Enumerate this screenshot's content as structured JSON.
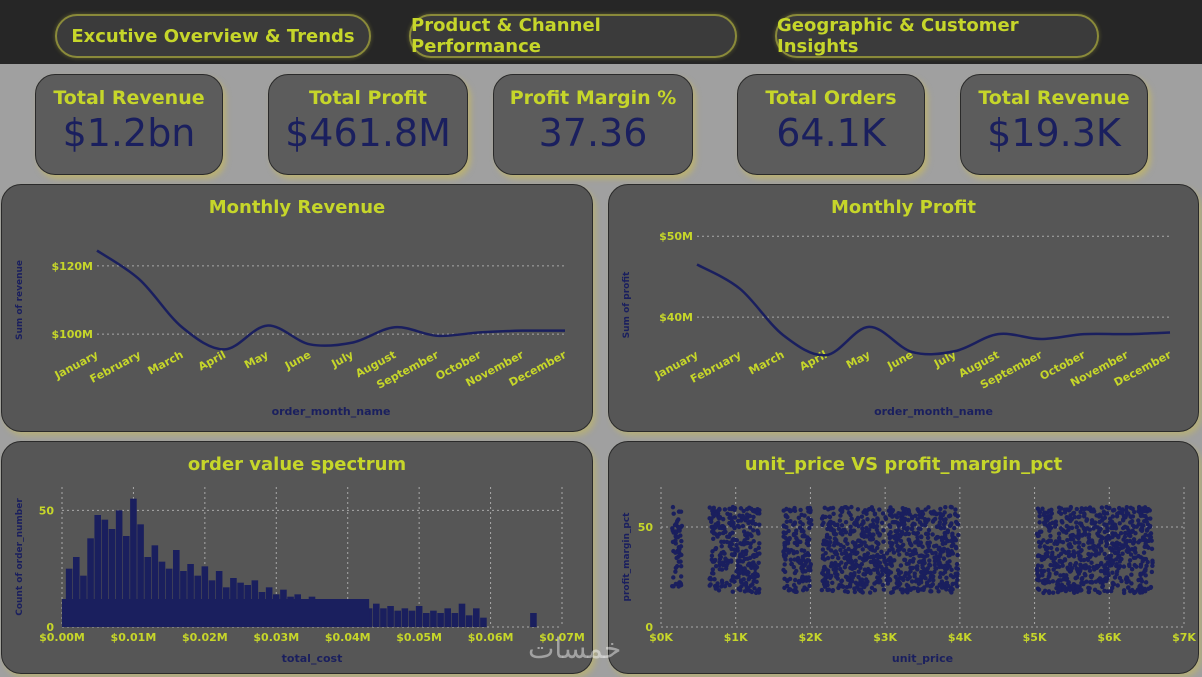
{
  "nav": {
    "tabs": [
      {
        "label": "Excutive Overview & Trends"
      },
      {
        "label": "Product & Channel Performance"
      },
      {
        "label": "Geographic & Customer Insights"
      }
    ]
  },
  "kpis": [
    {
      "label": "Total Revenue",
      "value": "$1.2bn"
    },
    {
      "label": "Total Profit",
      "value": "$461.8M"
    },
    {
      "label": "Profit Margin %",
      "value": "37.36"
    },
    {
      "label": "Total Orders",
      "value": "64.1K"
    },
    {
      "label": "Total Revenue",
      "value": "$19.3K"
    }
  ],
  "colors": {
    "accent": "#c6d62a",
    "series": "#1a1f5e",
    "card_bg": "#565656"
  },
  "watermark": "خمسات",
  "chart_data": [
    {
      "type": "line",
      "title": "Monthly Revenue",
      "xlabel": "order_month_name",
      "ylabel": "Sum of revenue",
      "categories": [
        "January",
        "February",
        "March",
        "April",
        "May",
        "June",
        "July",
        "August",
        "September",
        "October",
        "November",
        "December"
      ],
      "values": [
        124500000,
        116000000,
        102000000,
        95500000,
        102500000,
        97000000,
        97500000,
        102000000,
        99500000,
        100500000,
        101000000,
        101000000
      ],
      "yticks": [
        {
          "v": 100000000,
          "label": "$100M"
        },
        {
          "v": 120000000,
          "label": "$120M"
        }
      ],
      "ylim": [
        88000000,
        132000000
      ],
      "grid": true
    },
    {
      "type": "line",
      "title": "Monthly Profit",
      "xlabel": "order_month_name",
      "ylabel": "Sum of profit",
      "categories": [
        "January",
        "February",
        "March",
        "April",
        "May",
        "June",
        "July",
        "August",
        "September",
        "October",
        "November",
        "December"
      ],
      "values": [
        46500000,
        43500000,
        37800000,
        35300000,
        38800000,
        35700000,
        35800000,
        37900000,
        37300000,
        37900000,
        37900000,
        38100000
      ],
      "yticks": [
        {
          "v": 40000000,
          "label": "$40M"
        },
        {
          "v": 50000000,
          "label": "$50M"
        }
      ],
      "ylim": [
        31000000,
        52000000
      ],
      "grid": true
    },
    {
      "type": "bar",
      "title": "order value spectrum",
      "xlabel": "total_cost",
      "ylabel": "Count of order_number",
      "xticks": [
        "$0.00M",
        "$0.01M",
        "$0.02M",
        "$0.03M",
        "$0.04M",
        "$0.05M",
        "$0.06M",
        "$0.07M"
      ],
      "xlim": [
        0,
        0.07
      ],
      "yticks": [
        0,
        50
      ],
      "ylim": [
        0,
        60
      ],
      "bins": [
        {
          "x": 0.001,
          "count": 25
        },
        {
          "x": 0.002,
          "count": 30
        },
        {
          "x": 0.003,
          "count": 22
        },
        {
          "x": 0.004,
          "count": 38
        },
        {
          "x": 0.005,
          "count": 48
        },
        {
          "x": 0.006,
          "count": 46
        },
        {
          "x": 0.007,
          "count": 42
        },
        {
          "x": 0.008,
          "count": 50
        },
        {
          "x": 0.009,
          "count": 39
        },
        {
          "x": 0.01,
          "count": 55
        },
        {
          "x": 0.011,
          "count": 44
        },
        {
          "x": 0.012,
          "count": 30
        },
        {
          "x": 0.013,
          "count": 35
        },
        {
          "x": 0.014,
          "count": 28
        },
        {
          "x": 0.015,
          "count": 25
        },
        {
          "x": 0.016,
          "count": 33
        },
        {
          "x": 0.017,
          "count": 24
        },
        {
          "x": 0.018,
          "count": 27
        },
        {
          "x": 0.019,
          "count": 22
        },
        {
          "x": 0.02,
          "count": 26
        },
        {
          "x": 0.021,
          "count": 20
        },
        {
          "x": 0.022,
          "count": 24
        },
        {
          "x": 0.023,
          "count": 17
        },
        {
          "x": 0.024,
          "count": 21
        },
        {
          "x": 0.025,
          "count": 19
        },
        {
          "x": 0.026,
          "count": 18
        },
        {
          "x": 0.027,
          "count": 20
        },
        {
          "x": 0.028,
          "count": 15
        },
        {
          "x": 0.029,
          "count": 17
        },
        {
          "x": 0.03,
          "count": 14
        },
        {
          "x": 0.031,
          "count": 16
        },
        {
          "x": 0.032,
          "count": 13
        },
        {
          "x": 0.033,
          "count": 14
        },
        {
          "x": 0.034,
          "count": 12
        },
        {
          "x": 0.035,
          "count": 13
        },
        {
          "x": 0.036,
          "count": 11
        },
        {
          "x": 0.037,
          "count": 12
        },
        {
          "x": 0.038,
          "count": 10
        },
        {
          "x": 0.039,
          "count": 11
        },
        {
          "x": 0.04,
          "count": 12
        },
        {
          "x": 0.041,
          "count": 9
        },
        {
          "x": 0.042,
          "count": 11
        },
        {
          "x": 0.043,
          "count": 8
        },
        {
          "x": 0.044,
          "count": 10
        },
        {
          "x": 0.045,
          "count": 8
        },
        {
          "x": 0.046,
          "count": 9
        },
        {
          "x": 0.047,
          "count": 7
        },
        {
          "x": 0.048,
          "count": 8
        },
        {
          "x": 0.049,
          "count": 7
        },
        {
          "x": 0.05,
          "count": 9
        },
        {
          "x": 0.051,
          "count": 6
        },
        {
          "x": 0.052,
          "count": 7
        },
        {
          "x": 0.053,
          "count": 6
        },
        {
          "x": 0.054,
          "count": 8
        },
        {
          "x": 0.055,
          "count": 6
        },
        {
          "x": 0.056,
          "count": 10
        },
        {
          "x": 0.057,
          "count": 5
        },
        {
          "x": 0.058,
          "count": 8
        },
        {
          "x": 0.059,
          "count": 4
        },
        {
          "x": 0.066,
          "count": 6
        }
      ],
      "grid": true
    },
    {
      "type": "scatter",
      "title": "unit_price VS profit_margin_pct",
      "xlabel": "unit_price",
      "ylabel": "profit_margin_pct",
      "xticks": [
        "$0K",
        "$1K",
        "$2K",
        "$3K",
        "$4K",
        "$5K",
        "$6K",
        "$7K"
      ],
      "xlim": [
        0,
        7000
      ],
      "yticks": [
        0,
        50
      ],
      "ylim": [
        0,
        70
      ],
      "clusters": [
        {
          "x_range": [
            150,
            280
          ],
          "y_range": [
            17,
            60
          ]
        },
        {
          "x_range": [
            650,
            1320
          ],
          "y_range": [
            17,
            60
          ]
        },
        {
          "x_range": [
            1640,
            2020
          ],
          "y_range": [
            17,
            60
          ]
        },
        {
          "x_range": [
            2150,
            2700
          ],
          "y_range": [
            17,
            60
          ]
        },
        {
          "x_range": [
            2700,
            3980
          ],
          "y_range": [
            17,
            60
          ]
        },
        {
          "x_range": [
            5030,
            6580
          ],
          "y_range": [
            17,
            60
          ]
        }
      ],
      "grid": true
    }
  ]
}
